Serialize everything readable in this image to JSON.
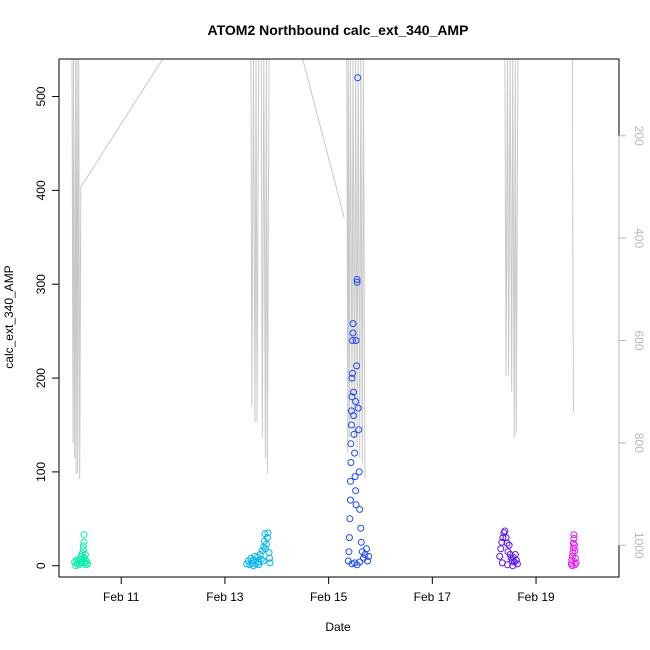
{
  "chart_data": {
    "type": "scatter",
    "title": "ATOM2 Northbound calc_ext_340_AMP",
    "xlabel": "Date",
    "ylabel": "calc_ext_340_AMP",
    "x_ticks": [
      "Feb 11",
      "Feb 13",
      "Feb 15",
      "Feb 17",
      "Feb 19"
    ],
    "x_tick_days": [
      11,
      13,
      15,
      17,
      19
    ],
    "xlim": [
      9.8,
      20.6
    ],
    "ylim": [
      -12,
      540
    ],
    "y_ticks": [
      0,
      100,
      200,
      300,
      400,
      500
    ],
    "y2_ticks": [
      200,
      400,
      600,
      800,
      1000
    ],
    "y2lim": [
      1062,
      50
    ],
    "y2_reversed": true,
    "grid": false,
    "colors": {
      "axis": "#000000",
      "axis_right": "#b8b8b8",
      "depth_line": "#c8c8c8"
    },
    "series": [
      {
        "color": "#00f0a8",
        "values": [
          [
            10.15,
            2
          ],
          [
            10.17,
            5
          ],
          [
            10.19,
            1
          ],
          [
            10.21,
            7
          ],
          [
            10.22,
            3
          ],
          [
            10.23,
            10
          ],
          [
            10.24,
            4
          ],
          [
            10.25,
            13
          ],
          [
            10.26,
            6
          ],
          [
            10.27,
            17
          ],
          [
            10.27,
            21
          ],
          [
            10.28,
            25
          ],
          [
            10.28,
            33
          ],
          [
            10.29,
            8
          ],
          [
            10.3,
            3
          ],
          [
            10.31,
            12
          ],
          [
            10.32,
            1
          ],
          [
            10.1,
            4
          ],
          [
            10.12,
            0
          ],
          [
            10.14,
            6
          ],
          [
            10.33,
            5
          ],
          [
            10.35,
            2
          ]
        ]
      },
      {
        "color": "#00b4f0",
        "values": [
          [
            13.42,
            2
          ],
          [
            13.45,
            5
          ],
          [
            13.48,
            1
          ],
          [
            13.5,
            8
          ],
          [
            13.52,
            3
          ],
          [
            13.55,
            6
          ],
          [
            13.58,
            10
          ],
          [
            13.6,
            2
          ],
          [
            13.63,
            9
          ],
          [
            13.65,
            4
          ],
          [
            13.68,
            12
          ],
          [
            13.7,
            7
          ],
          [
            13.72,
            16
          ],
          [
            13.74,
            5
          ],
          [
            13.75,
            20
          ],
          [
            13.76,
            26
          ],
          [
            13.77,
            34
          ],
          [
            13.78,
            18
          ],
          [
            13.8,
            23
          ],
          [
            13.82,
            30
          ],
          [
            13.83,
            35
          ],
          [
            13.85,
            14
          ],
          [
            13.86,
            8
          ],
          [
            13.87,
            3
          ],
          [
            13.55,
            0
          ],
          [
            13.65,
            1
          ]
        ]
      },
      {
        "color": "#1e46ff",
        "values": [
          [
            15.38,
            5
          ],
          [
            15.39,
            15
          ],
          [
            15.4,
            30
          ],
          [
            15.41,
            50
          ],
          [
            15.42,
            70
          ],
          [
            15.42,
            90
          ],
          [
            15.43,
            110
          ],
          [
            15.43,
            130
          ],
          [
            15.44,
            150
          ],
          [
            15.44,
            165
          ],
          [
            15.45,
            180
          ],
          [
            15.45,
            200
          ],
          [
            15.46,
            205
          ],
          [
            15.46,
            240
          ],
          [
            15.47,
            248
          ],
          [
            15.47,
            258
          ],
          [
            15.48,
            160
          ],
          [
            15.49,
            140
          ],
          [
            15.5,
            120
          ],
          [
            15.51,
            95
          ],
          [
            15.52,
            80
          ],
          [
            15.53,
            65
          ],
          [
            15.53,
            240
          ],
          [
            15.54,
            213
          ],
          [
            15.55,
            302
          ],
          [
            15.55,
            305
          ],
          [
            15.56,
            520
          ],
          [
            15.57,
            168
          ],
          [
            15.58,
            145
          ],
          [
            15.59,
            100
          ],
          [
            15.6,
            60
          ],
          [
            15.62,
            40
          ],
          [
            15.63,
            25
          ],
          [
            15.65,
            15
          ],
          [
            15.67,
            8
          ],
          [
            15.7,
            12
          ],
          [
            15.73,
            18
          ],
          [
            15.75,
            5
          ],
          [
            15.77,
            10
          ],
          [
            15.45,
            2
          ],
          [
            15.5,
            3
          ],
          [
            15.55,
            1
          ],
          [
            15.6,
            4
          ],
          [
            15.48,
            185
          ],
          [
            15.52,
            175
          ]
        ]
      },
      {
        "color": "#5a14f0",
        "values": [
          [
            18.3,
            10
          ],
          [
            18.32,
            18
          ],
          [
            18.34,
            25
          ],
          [
            18.36,
            30
          ],
          [
            18.38,
            35
          ],
          [
            18.4,
            37
          ],
          [
            18.42,
            30
          ],
          [
            18.44,
            24
          ],
          [
            18.46,
            15
          ],
          [
            18.48,
            22
          ],
          [
            18.5,
            12
          ],
          [
            18.52,
            8
          ],
          [
            18.54,
            5
          ],
          [
            18.56,
            9
          ],
          [
            18.58,
            4
          ],
          [
            18.6,
            12
          ],
          [
            18.62,
            6
          ],
          [
            18.64,
            2
          ],
          [
            18.35,
            3
          ],
          [
            18.45,
            1
          ],
          [
            18.55,
            0
          ]
        ]
      },
      {
        "color": "#e614f0",
        "values": [
          [
            19.68,
            2
          ],
          [
            19.69,
            6
          ],
          [
            19.7,
            10
          ],
          [
            19.71,
            14
          ],
          [
            19.72,
            19
          ],
          [
            19.72,
            24
          ],
          [
            19.73,
            29
          ],
          [
            19.73,
            33
          ],
          [
            19.74,
            22
          ],
          [
            19.75,
            16
          ],
          [
            19.76,
            8
          ],
          [
            19.77,
            3
          ],
          [
            19.7,
            0
          ],
          [
            19.75,
            1
          ]
        ]
      }
    ],
    "depth_profiles": [
      {
        "x": [
          10.05,
          10.07,
          10.08,
          10.1,
          10.12,
          10.13,
          10.15,
          10.16,
          10.18,
          10.2,
          10.22
        ],
        "depth": [
          50,
          800,
          50,
          830,
          50,
          860,
          50,
          860,
          50,
          870,
          300
        ]
      },
      {
        "x": [
          10.22,
          11.8,
          11.8
        ],
        "depth": [
          300,
          50,
          50
        ]
      },
      {
        "x": [
          13.5,
          13.52,
          13.55,
          13.58,
          13.6,
          13.62,
          13.65,
          13.7,
          13.72,
          13.75,
          13.78,
          13.8,
          13.82,
          13.85
        ],
        "depth": [
          50,
          730,
          50,
          760,
          50,
          760,
          50,
          50,
          790,
          50,
          830,
          50,
          860,
          50
        ]
      },
      {
        "x": [
          14.5,
          15.3
        ],
        "depth": [
          50,
          360
        ]
      },
      {
        "x": [
          15.35,
          15.37,
          15.38,
          15.4,
          15.42,
          15.45,
          15.47,
          15.5,
          15.52,
          15.55,
          15.57,
          15.6,
          15.62,
          15.65,
          15.67,
          15.7
        ],
        "depth": [
          50,
          820,
          50,
          790,
          50,
          760,
          50,
          790,
          50,
          810,
          50,
          830,
          50,
          840,
          50,
          870
        ]
      },
      {
        "x": [
          18.4,
          18.42,
          18.45,
          18.47,
          18.5,
          18.53,
          18.55,
          18.58,
          18.6,
          18.62,
          18.65
        ],
        "depth": [
          50,
          670,
          50,
          670,
          50,
          700,
          50,
          790,
          50,
          780,
          50
        ]
      },
      {
        "x": [
          19.7,
          19.72
        ],
        "depth": [
          50,
          740
        ]
      }
    ]
  }
}
